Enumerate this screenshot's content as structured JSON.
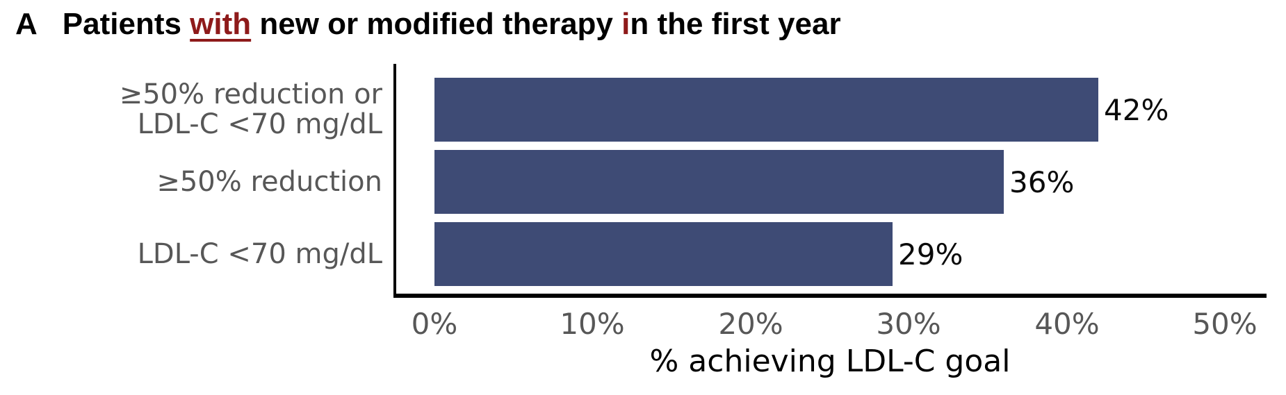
{
  "panel": {
    "letter": "A",
    "title_segments": {
      "seg1": "Patients ",
      "seg2_red_underlined": "with",
      "seg3": " new or modified therapy ",
      "seg4_red": "i",
      "seg5": "n the first year"
    }
  },
  "chart_data": {
    "type": "bar",
    "orientation": "horizontal",
    "title": "A Patients with new or modified therapy in the first year",
    "categories": [
      "≥50% reduction or LDL-C <70 mg/dL",
      "≥50% reduction",
      "LDL-C <70 mg/dL"
    ],
    "values": [
      42,
      36,
      29
    ],
    "value_labels": [
      "42%",
      "36%",
      "29%"
    ],
    "xlabel": "% achieving LDL-C goal",
    "ylabel": "",
    "xticks": [
      "0%",
      "10%",
      "20%",
      "30%",
      "40%",
      "50%"
    ],
    "xtick_values": [
      0,
      10,
      20,
      30,
      40,
      50
    ],
    "xlim": [
      0,
      50
    ],
    "grid": false,
    "legend": false,
    "bar_color": "#3e4b75",
    "tick_text_color": "#575757",
    "value_text_color": "#0a0a0a",
    "title_red_color": "#8e1a1a"
  },
  "yaxis": {
    "labels": [
      {
        "line1": "≥50% reduction or",
        "line2": "LDL-C <70 mg/dL"
      },
      {
        "line1": "≥50% reduction",
        "line2": ""
      },
      {
        "line1": "LDL-C <70 mg/dL",
        "line2": ""
      }
    ]
  }
}
